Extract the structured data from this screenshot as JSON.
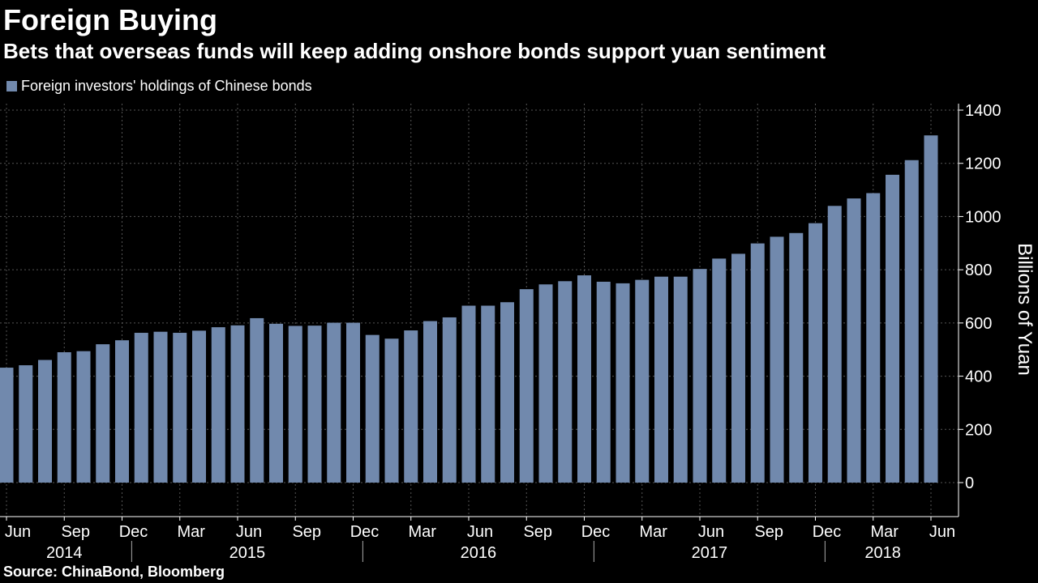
{
  "title": "Foreign Buying",
  "subtitle": "Bets that overseas funds will keep adding onshore bonds support yuan sentiment",
  "source": "Source: ChinaBond, Bloomberg",
  "colors": {
    "bar": "#7189ad",
    "background": "#000000",
    "grid": "#555555",
    "text": "#ffffff"
  },
  "chart_data": {
    "type": "bar",
    "title": "Foreign Buying",
    "legend": "Foreign investors' holdings of Chinese bonds",
    "legend_position": "top-left",
    "ylabel": "Billions of Yuan",
    "xlabel": "",
    "ylim": [
      -120,
      1450
    ],
    "yticks": [
      0,
      200,
      400,
      600,
      800,
      1000,
      1200,
      1400
    ],
    "categories": [
      "Jun 2014",
      "Jul 2014",
      "Aug 2014",
      "Sep 2014",
      "Oct 2014",
      "Nov 2014",
      "Dec 2014",
      "Jan 2015",
      "Feb 2015",
      "Mar 2015",
      "Apr 2015",
      "May 2015",
      "Jun 2015",
      "Jul 2015",
      "Aug 2015",
      "Sep 2015",
      "Oct 2015",
      "Nov 2015",
      "Dec 2015",
      "Jan 2016",
      "Feb 2016",
      "Mar 2016",
      "Apr 2016",
      "May 2016",
      "Jun 2016",
      "Jul 2016",
      "Aug 2016",
      "Sep 2016",
      "Oct 2016",
      "Nov 2016",
      "Dec 2016",
      "Jan 2017",
      "Feb 2017",
      "Mar 2017",
      "Apr 2017",
      "May 2017",
      "Jun 2017",
      "Jul 2017",
      "Aug 2017",
      "Sep 2017",
      "Oct 2017",
      "Nov 2017",
      "Dec 2017",
      "Jan 2018",
      "Feb 2018",
      "Mar 2018",
      "Apr 2018",
      "May 2018",
      "Jun 2018"
    ],
    "values": [
      432,
      441,
      461,
      490,
      494,
      520,
      535,
      563,
      567,
      563,
      571,
      584,
      591,
      618,
      597,
      589,
      590,
      601,
      601,
      555,
      541,
      572,
      607,
      621,
      665,
      665,
      678,
      727,
      745,
      757,
      779,
      755,
      749,
      762,
      774,
      774,
      803,
      842,
      860,
      899,
      924,
      938,
      975,
      1040,
      1068,
      1088,
      1157,
      1212,
      1305
    ],
    "month_ticks": [
      {
        "index": 0,
        "label": "Jun"
      },
      {
        "index": 3,
        "label": "Sep"
      },
      {
        "index": 6,
        "label": "Dec"
      },
      {
        "index": 9,
        "label": "Mar"
      },
      {
        "index": 12,
        "label": "Jun"
      },
      {
        "index": 15,
        "label": "Sep"
      },
      {
        "index": 18,
        "label": "Dec"
      },
      {
        "index": 21,
        "label": "Mar"
      },
      {
        "index": 24,
        "label": "Jun"
      },
      {
        "index": 27,
        "label": "Sep"
      },
      {
        "index": 30,
        "label": "Dec"
      },
      {
        "index": 33,
        "label": "Mar"
      },
      {
        "index": 36,
        "label": "Jun"
      },
      {
        "index": 39,
        "label": "Sep"
      },
      {
        "index": 42,
        "label": "Dec"
      },
      {
        "index": 45,
        "label": "Mar"
      },
      {
        "index": 48,
        "label": "Jun"
      }
    ],
    "years": [
      {
        "label": "2014",
        "start": 0,
        "end": 6
      },
      {
        "label": "2015",
        "start": 7,
        "end": 18
      },
      {
        "label": "2016",
        "start": 19,
        "end": 30
      },
      {
        "label": "2017",
        "start": 31,
        "end": 42
      },
      {
        "label": "2018",
        "start": 43,
        "end": 48
      }
    ]
  }
}
